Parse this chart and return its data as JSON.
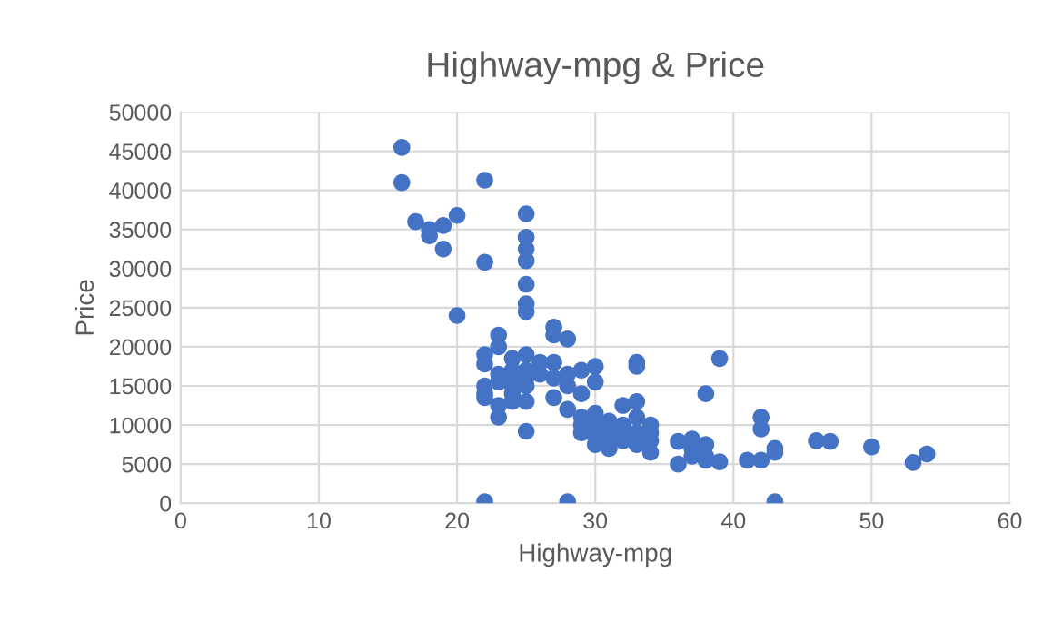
{
  "chart_data": {
    "type": "scatter",
    "title": "Highway-mpg & Price",
    "xlabel": "Highway-mpg",
    "ylabel": "Price",
    "xlim": [
      0,
      60
    ],
    "xticks": [
      0,
      10,
      20,
      30,
      40,
      50,
      60
    ],
    "ylim": [
      0,
      50000
    ],
    "yticks": [
      0,
      5000,
      10000,
      15000,
      20000,
      25000,
      30000,
      35000,
      40000,
      45000,
      50000
    ],
    "grid": true,
    "legend": false,
    "marker": "circle",
    "series": [
      {
        "color": "#4472c4",
        "x": [
          16,
          16,
          17,
          18,
          18,
          19,
          19,
          20,
          20,
          22,
          22,
          22,
          22,
          22,
          22,
          22,
          22,
          23,
          23,
          23,
          23,
          23,
          23,
          24,
          24,
          24,
          24,
          24,
          24,
          25,
          25,
          25,
          25,
          25,
          25,
          25,
          25,
          25,
          25,
          25,
          25,
          25,
          26,
          26,
          27,
          27,
          27,
          27,
          27,
          28,
          28,
          28,
          28,
          28,
          29,
          29,
          29,
          29,
          29,
          30,
          30,
          30,
          30,
          30,
          30,
          31,
          31,
          31,
          31,
          32,
          32,
          32,
          32,
          33,
          33,
          33,
          33,
          33,
          33,
          34,
          34,
          34,
          34,
          36,
          36,
          37,
          37,
          37,
          38,
          38,
          38,
          38,
          39,
          39,
          41,
          42,
          42,
          42,
          43,
          43,
          43,
          46,
          47,
          50,
          53,
          54
        ],
        "values": [
          45500,
          41000,
          36000,
          35000,
          34200,
          35500,
          32500,
          36800,
          24000,
          41300,
          30800,
          19000,
          17800,
          15000,
          14000,
          13500,
          200,
          21500,
          20000,
          16500,
          15500,
          12500,
          11000,
          18500,
          17000,
          16000,
          15000,
          14000,
          13000,
          37000,
          34000,
          32500,
          31000,
          28000,
          25500,
          24500,
          19000,
          17000,
          16000,
          15000,
          13000,
          9200,
          18000,
          16500,
          22500,
          21500,
          18000,
          16000,
          13500,
          21000,
          16500,
          15000,
          12000,
          200,
          17000,
          14000,
          11000,
          10000,
          9000,
          17500,
          15500,
          11500,
          10000,
          8500,
          7500,
          10500,
          9500,
          8000,
          7000,
          12500,
          10000,
          9000,
          8000,
          18000,
          17500,
          13000,
          11000,
          9000,
          7500,
          10000,
          9000,
          8000,
          6500,
          7900,
          5000,
          8200,
          7000,
          6000,
          14000,
          7500,
          6000,
          5500,
          18500,
          5300,
          5500,
          11000,
          9500,
          5500,
          7000,
          6500,
          200,
          8000,
          7900,
          7200,
          5200,
          6300
        ]
      }
    ]
  }
}
